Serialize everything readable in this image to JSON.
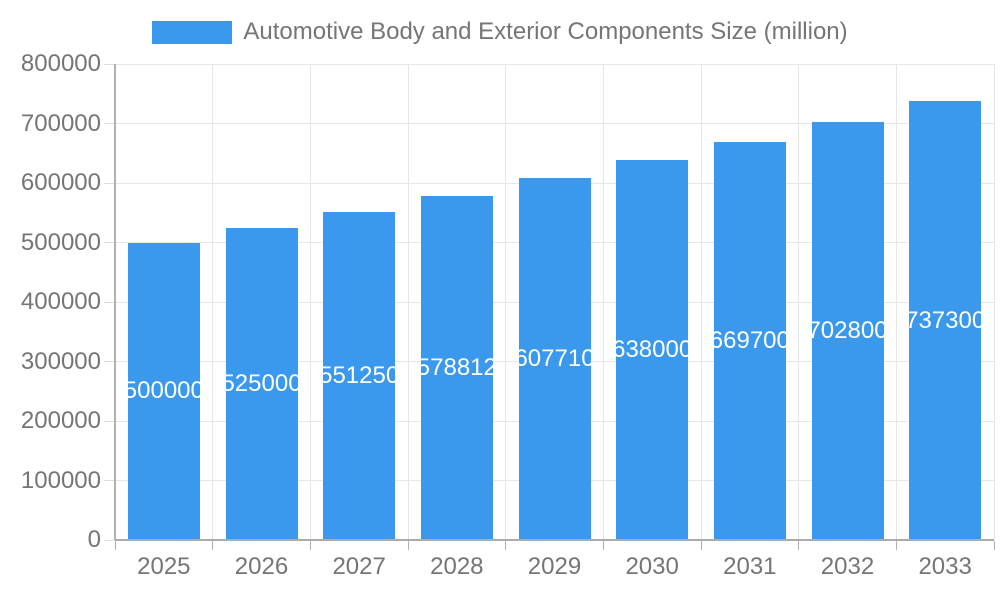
{
  "chart_data": {
    "type": "bar",
    "title": "Automotive Body and Exterior Components Size (million)",
    "categories": [
      "2025",
      "2026",
      "2027",
      "2028",
      "2029",
      "2030",
      "2031",
      "2032",
      "2033"
    ],
    "values": [
      500000,
      525000,
      551250,
      578812,
      607710,
      638000,
      669700,
      702800,
      737300
    ],
    "bar_labels": [
      "500000",
      "525000",
      "551250",
      "578812",
      "607710",
      "638000",
      "669700",
      "702800",
      "737300"
    ],
    "xlabel": "",
    "ylabel": "",
    "ylim": [
      0,
      800000
    ],
    "ytick_step": 100000,
    "yticks": [
      "0",
      "100000",
      "200000",
      "300000",
      "400000",
      "500000",
      "600000",
      "700000",
      "800000"
    ],
    "grid": true,
    "legend_position": "top-center",
    "colors": {
      "bar": "#3a99ec",
      "bar_label": "#ffffff",
      "axis_text": "#757575",
      "gridline": "#e6e6e6",
      "axis_line": "#b0b0b0",
      "background": "#ffffff"
    }
  }
}
